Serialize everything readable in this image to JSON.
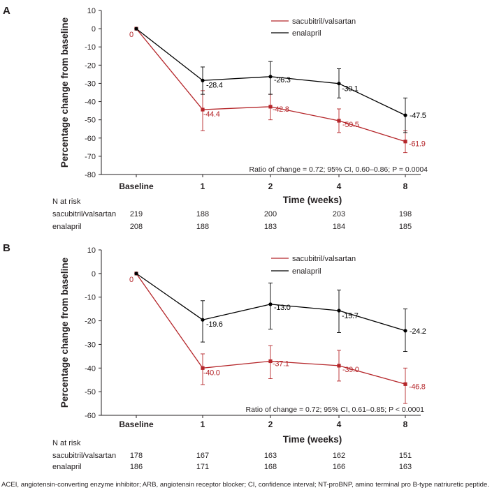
{
  "footnote": "ACEI, angiotensin-converting enzyme inhibitor; ARB, angiotensin receptor blocker; CI, confidence interval; NT-proBNP, amino terminal pro B-type natriuretic peptide.",
  "colors": {
    "sacubitril": "#b5262a",
    "enalapril": "#000000",
    "axis": "#231f20"
  },
  "chart_data": [
    {
      "panel_label": "A",
      "type": "line",
      "ylabel": "Percentage change from baseline",
      "xlabel": "Time (weeks)",
      "categories": [
        "Baseline",
        "1",
        "2",
        "4",
        "8"
      ],
      "ylim": [
        -80,
        10
      ],
      "yticks": [
        10,
        0,
        -10,
        -20,
        -30,
        -40,
        -50,
        -60,
        -70,
        -80
      ],
      "legend_position": "top-right",
      "annotation": "Ratio of change = 0.72; 95% CI, 0.60–0.86; P = 0.0004",
      "series": [
        {
          "name": "sacubitril/valsartan",
          "key": "sacubitril",
          "values": [
            0,
            -44.4,
            -42.8,
            -50.5,
            -61.9
          ],
          "labels": [
            "0",
            "-44.4",
            "-42.8",
            "-50.5",
            "-61.9"
          ],
          "ci_low": [
            null,
            -56,
            -50,
            -57,
            -68
          ],
          "ci_high": [
            null,
            -34,
            -36,
            -44,
            -56
          ]
        },
        {
          "name": "enalapril",
          "key": "enalapril",
          "values": [
            0,
            -28.4,
            -26.3,
            -30.1,
            -47.5
          ],
          "labels": [
            "",
            "-28.4",
            "-26.3",
            "-30.1",
            "-47.5"
          ],
          "ci_low": [
            null,
            -36,
            -36,
            -38,
            -57
          ],
          "ci_high": [
            null,
            -21,
            -18,
            -22,
            -38
          ]
        }
      ],
      "at_risk": {
        "title": "N at risk",
        "rows": [
          {
            "name": "sacubitril/valsartan",
            "values": [
              "219",
              "188",
              "200",
              "203",
              "198"
            ]
          },
          {
            "name": "enalapril",
            "values": [
              "208",
              "188",
              "183",
              "184",
              "185"
            ]
          }
        ]
      }
    },
    {
      "panel_label": "B",
      "type": "line",
      "ylabel": "Percentage change from baseline",
      "xlabel": "Time (weeks)",
      "categories": [
        "Baseline",
        "1",
        "2",
        "4",
        "8"
      ],
      "ylim": [
        -60,
        10
      ],
      "yticks": [
        10,
        0,
        -10,
        -20,
        -30,
        -40,
        -50,
        -60
      ],
      "legend_position": "top-right",
      "annotation": "Ratio of change = 0.72; 95% CI, 0.61–0.85; P < 0.0001",
      "series": [
        {
          "name": "sacubitril/valsartan",
          "key": "sacubitril",
          "values": [
            0,
            -40.0,
            -37.1,
            -39.0,
            -46.8
          ],
          "labels": [
            "0",
            "-40.0",
            "-37.1",
            "-39.0",
            "-46.8"
          ],
          "ci_low": [
            null,
            -47,
            -44.5,
            -45.5,
            -55
          ],
          "ci_high": [
            null,
            -34,
            -30.5,
            -32.5,
            -40
          ]
        },
        {
          "name": "enalapril",
          "key": "enalapril",
          "values": [
            0,
            -19.6,
            -13.0,
            -15.7,
            -24.2
          ],
          "labels": [
            "",
            "-19.6",
            "-13.0",
            "-15.7",
            "-24.2"
          ],
          "ci_low": [
            null,
            -29,
            -23.5,
            -25,
            -33
          ],
          "ci_high": [
            null,
            -11.5,
            -4,
            -7,
            -15
          ]
        }
      ],
      "at_risk": {
        "title": "N at risk",
        "rows": [
          {
            "name": "sacubitril/valsartan",
            "values": [
              "178",
              "167",
              "163",
              "162",
              "151"
            ]
          },
          {
            "name": "enalapril",
            "values": [
              "186",
              "171",
              "168",
              "166",
              "163"
            ]
          }
        ]
      }
    }
  ]
}
